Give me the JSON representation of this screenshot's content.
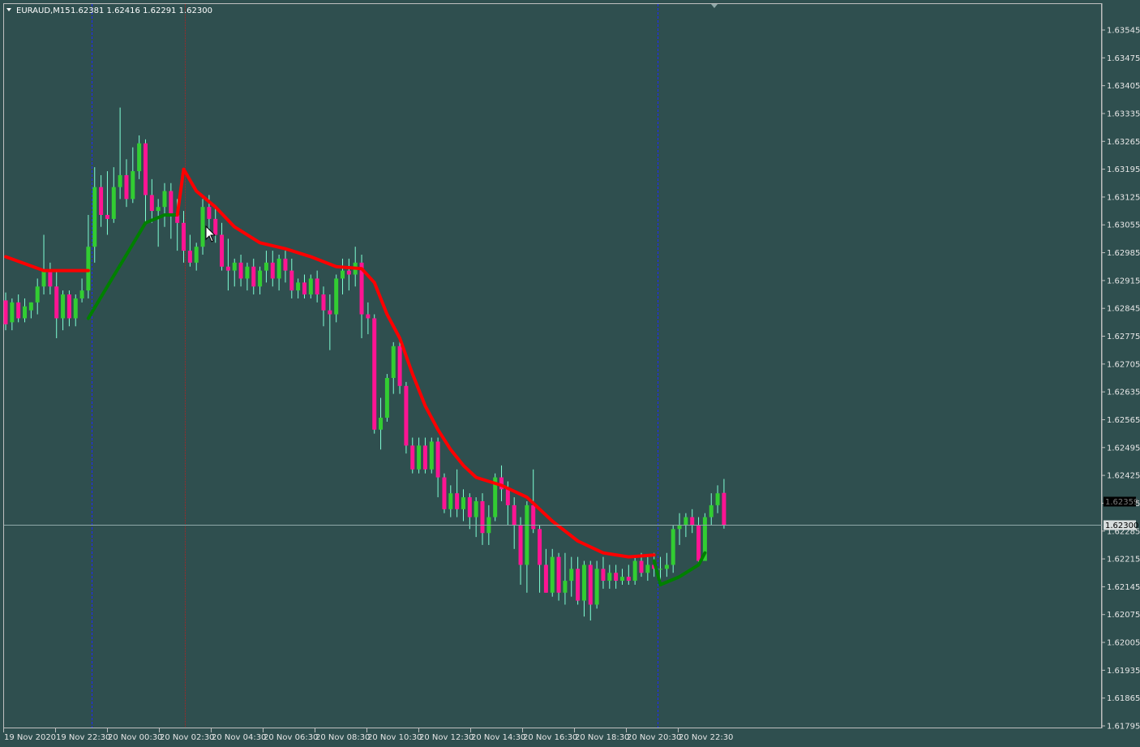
{
  "header": {
    "symbol": "EURAUD,M15",
    "ohlc": "1.62381 1.62416 1.62291 1.62300",
    "dropdown_icon": "triangle-down-icon"
  },
  "colors": {
    "background": "#2f4f4f",
    "grid_border": "#c0c0c0",
    "bull": "#32cd32",
    "bear": "#ff1493",
    "wick": "#7fffd4",
    "line_down": "#ff0000",
    "line_up": "#008000",
    "separator_blue": "#1e2aff",
    "separator_red": "#b22222",
    "bid_line": "#8fa8a8"
  },
  "chart_data": {
    "type": "candlestick",
    "price_axis": {
      "ticks": [
        "1.63545",
        "1.63475",
        "1.63405",
        "1.63335",
        "1.63265",
        "1.63195",
        "1.63125",
        "1.63055",
        "1.62985",
        "1.62915",
        "1.62845",
        "1.62775",
        "1.62705",
        "1.62635",
        "1.62565",
        "1.62495",
        "1.62425",
        "1.62355",
        "1.62285",
        "1.62215",
        "1.62145",
        "1.62075",
        "1.62005",
        "1.61935",
        "1.61865",
        "1.61795"
      ],
      "ylim": [
        1.61795,
        1.63545
      ],
      "current_price_label": "1.62300",
      "current_price": 1.623,
      "ask_price_label": "1.62359"
    },
    "time_axis": {
      "labels": [
        "19 Nov 2020",
        "19 Nov 22:30",
        "20 Nov 00:30",
        "20 Nov 02:30",
        "20 Nov 04:30",
        "20 Nov 06:30",
        "20 Nov 08:30",
        "20 Nov 10:30",
        "20 Nov 12:30",
        "20 Nov 14:30",
        "20 Nov 16:30",
        "20 Nov 18:30",
        "20 Nov 20:30",
        "20 Nov 22:30"
      ]
    },
    "candles": [
      {
        "o": 1.62865,
        "h": 1.62885,
        "c": 1.62805,
        "l": 1.6279
      },
      {
        "o": 1.6281,
        "h": 1.6287,
        "c": 1.6286,
        "l": 1.6279
      },
      {
        "o": 1.6286,
        "h": 1.6288,
        "c": 1.6282,
        "l": 1.6281
      },
      {
        "o": 1.6282,
        "h": 1.6287,
        "c": 1.6285,
        "l": 1.6281
      },
      {
        "o": 1.6284,
        "h": 1.6286,
        "c": 1.6286,
        "l": 1.6282
      },
      {
        "o": 1.6286,
        "h": 1.6292,
        "c": 1.629,
        "l": 1.6283
      },
      {
        "o": 1.629,
        "h": 1.6303,
        "c": 1.6294,
        "l": 1.6288
      },
      {
        "o": 1.6294,
        "h": 1.6296,
        "c": 1.629,
        "l": 1.6288
      },
      {
        "o": 1.629,
        "h": 1.6294,
        "c": 1.6282,
        "l": 1.6277
      },
      {
        "o": 1.6282,
        "h": 1.6289,
        "c": 1.6288,
        "l": 1.6279
      },
      {
        "o": 1.6288,
        "h": 1.6289,
        "c": 1.6282,
        "l": 1.628
      },
      {
        "o": 1.6282,
        "h": 1.6288,
        "c": 1.6287,
        "l": 1.628
      },
      {
        "o": 1.6287,
        "h": 1.6292,
        "c": 1.6289,
        "l": 1.6286
      },
      {
        "o": 1.6289,
        "h": 1.6308,
        "c": 1.63,
        "l": 1.6287
      },
      {
        "o": 1.63,
        "h": 1.632,
        "c": 1.6315,
        "l": 1.6296
      },
      {
        "o": 1.6315,
        "h": 1.6318,
        "c": 1.6308,
        "l": 1.6305
      },
      {
        "o": 1.6308,
        "h": 1.6319,
        "c": 1.6307,
        "l": 1.6303
      },
      {
        "o": 1.6307,
        "h": 1.632,
        "c": 1.6315,
        "l": 1.6306
      },
      {
        "o": 1.6315,
        "h": 1.6335,
        "c": 1.6318,
        "l": 1.6312
      },
      {
        "o": 1.6318,
        "h": 1.6322,
        "c": 1.6312,
        "l": 1.631
      },
      {
        "o": 1.6312,
        "h": 1.6325,
        "c": 1.6319,
        "l": 1.6311
      },
      {
        "o": 1.6319,
        "h": 1.6328,
        "c": 1.6326,
        "l": 1.6317
      },
      {
        "o": 1.6326,
        "h": 1.6327,
        "c": 1.6313,
        "l": 1.6306
      },
      {
        "o": 1.6313,
        "h": 1.6317,
        "c": 1.6309,
        "l": 1.6306
      },
      {
        "o": 1.6309,
        "h": 1.6312,
        "c": 1.631,
        "l": 1.63
      },
      {
        "o": 1.631,
        "h": 1.6316,
        "c": 1.6314,
        "l": 1.6305
      },
      {
        "o": 1.6314,
        "h": 1.6316,
        "c": 1.6308,
        "l": 1.6302
      },
      {
        "o": 1.6308,
        "h": 1.6312,
        "c": 1.6306,
        "l": 1.6299
      },
      {
        "o": 1.6306,
        "h": 1.6309,
        "c": 1.6299,
        "l": 1.6296
      },
      {
        "o": 1.6299,
        "h": 1.6303,
        "c": 1.6296,
        "l": 1.6295
      },
      {
        "o": 1.6296,
        "h": 1.6301,
        "c": 1.63,
        "l": 1.6294
      },
      {
        "o": 1.63,
        "h": 1.6312,
        "c": 1.631,
        "l": 1.6298
      },
      {
        "o": 1.631,
        "h": 1.6313,
        "c": 1.6307,
        "l": 1.6304
      },
      {
        "o": 1.6307,
        "h": 1.631,
        "c": 1.6303,
        "l": 1.6301
      },
      {
        "o": 1.6303,
        "h": 1.6306,
        "c": 1.6295,
        "l": 1.6294
      },
      {
        "o": 1.6295,
        "h": 1.6302,
        "c": 1.6294,
        "l": 1.6289
      },
      {
        "o": 1.6294,
        "h": 1.6297,
        "c": 1.6296,
        "l": 1.629
      },
      {
        "o": 1.6296,
        "h": 1.6298,
        "c": 1.6292,
        "l": 1.629
      },
      {
        "o": 1.6292,
        "h": 1.6296,
        "c": 1.6295,
        "l": 1.6289
      },
      {
        "o": 1.6295,
        "h": 1.6297,
        "c": 1.629,
        "l": 1.6288
      },
      {
        "o": 1.629,
        "h": 1.6295,
        "c": 1.6294,
        "l": 1.6288
      },
      {
        "o": 1.6294,
        "h": 1.6299,
        "c": 1.6296,
        "l": 1.6291
      },
      {
        "o": 1.6296,
        "h": 1.6299,
        "c": 1.6292,
        "l": 1.629
      },
      {
        "o": 1.6292,
        "h": 1.6298,
        "c": 1.6297,
        "l": 1.6289
      },
      {
        "o": 1.6297,
        "h": 1.6299,
        "c": 1.6294,
        "l": 1.6291
      },
      {
        "o": 1.6294,
        "h": 1.6297,
        "c": 1.6289,
        "l": 1.6287
      },
      {
        "o": 1.6289,
        "h": 1.6292,
        "c": 1.6291,
        "l": 1.6287
      },
      {
        "o": 1.6291,
        "h": 1.6293,
        "c": 1.6288,
        "l": 1.6287
      },
      {
        "o": 1.6288,
        "h": 1.6293,
        "c": 1.6292,
        "l": 1.6287
      },
      {
        "o": 1.6292,
        "h": 1.6294,
        "c": 1.6288,
        "l": 1.6286
      },
      {
        "o": 1.6288,
        "h": 1.629,
        "c": 1.6284,
        "l": 1.628
      },
      {
        "o": 1.6284,
        "h": 1.6288,
        "c": 1.6283,
        "l": 1.6274
      },
      {
        "o": 1.6283,
        "h": 1.6293,
        "c": 1.6292,
        "l": 1.6281
      },
      {
        "o": 1.6292,
        "h": 1.6297,
        "c": 1.6294,
        "l": 1.6288
      },
      {
        "o": 1.6294,
        "h": 1.6297,
        "c": 1.6293,
        "l": 1.6289
      },
      {
        "o": 1.6293,
        "h": 1.63,
        "c": 1.6296,
        "l": 1.629
      },
      {
        "o": 1.6296,
        "h": 1.6298,
        "c": 1.6283,
        "l": 1.6277
      },
      {
        "o": 1.6283,
        "h": 1.6286,
        "c": 1.6282,
        "l": 1.6278
      },
      {
        "o": 1.6282,
        "h": 1.6283,
        "c": 1.6254,
        "l": 1.6253
      },
      {
        "o": 1.6254,
        "h": 1.6262,
        "c": 1.6257,
        "l": 1.6249
      },
      {
        "o": 1.6257,
        "h": 1.6268,
        "c": 1.6267,
        "l": 1.6256
      },
      {
        "o": 1.6267,
        "h": 1.6276,
        "c": 1.6275,
        "l": 1.6263
      },
      {
        "o": 1.6275,
        "h": 1.6277,
        "c": 1.6265,
        "l": 1.6263
      },
      {
        "o": 1.6265,
        "h": 1.6266,
        "c": 1.625,
        "l": 1.6248
      },
      {
        "o": 1.625,
        "h": 1.6252,
        "c": 1.6244,
        "l": 1.6243
      },
      {
        "o": 1.6244,
        "h": 1.6252,
        "c": 1.625,
        "l": 1.6243
      },
      {
        "o": 1.625,
        "h": 1.6252,
        "c": 1.6244,
        "l": 1.6243
      },
      {
        "o": 1.6244,
        "h": 1.6252,
        "c": 1.6251,
        "l": 1.6243
      },
      {
        "o": 1.6251,
        "h": 1.6252,
        "c": 1.6242,
        "l": 1.6237
      },
      {
        "o": 1.6242,
        "h": 1.6243,
        "c": 1.6234,
        "l": 1.6233
      },
      {
        "o": 1.6234,
        "h": 1.624,
        "c": 1.6238,
        "l": 1.6232
      },
      {
        "o": 1.6238,
        "h": 1.6244,
        "c": 1.6234,
        "l": 1.6232
      },
      {
        "o": 1.6234,
        "h": 1.6239,
        "c": 1.6237,
        "l": 1.6231
      },
      {
        "o": 1.6237,
        "h": 1.6238,
        "c": 1.6232,
        "l": 1.6229
      },
      {
        "o": 1.6232,
        "h": 1.6237,
        "c": 1.6236,
        "l": 1.6227
      },
      {
        "o": 1.6236,
        "h": 1.6238,
        "c": 1.6228,
        "l": 1.6225
      },
      {
        "o": 1.6228,
        "h": 1.6235,
        "c": 1.6232,
        "l": 1.6225
      },
      {
        "o": 1.6232,
        "h": 1.6243,
        "c": 1.6242,
        "l": 1.6231
      },
      {
        "o": 1.6242,
        "h": 1.6245,
        "c": 1.6239,
        "l": 1.6236
      },
      {
        "o": 1.6239,
        "h": 1.6241,
        "c": 1.6235,
        "l": 1.623
      },
      {
        "o": 1.6235,
        "h": 1.6237,
        "c": 1.623,
        "l": 1.6224
      },
      {
        "o": 1.623,
        "h": 1.6232,
        "c": 1.622,
        "l": 1.6215
      },
      {
        "o": 1.622,
        "h": 1.6236,
        "c": 1.6235,
        "l": 1.6213
      },
      {
        "o": 1.6235,
        "h": 1.6244,
        "c": 1.6229,
        "l": 1.6228
      },
      {
        "o": 1.6229,
        "h": 1.623,
        "c": 1.622,
        "l": 1.6213
      },
      {
        "o": 1.622,
        "h": 1.6224,
        "c": 1.6213,
        "l": 1.6213
      },
      {
        "o": 1.6213,
        "h": 1.6224,
        "c": 1.6222,
        "l": 1.6212
      },
      {
        "o": 1.6222,
        "h": 1.6223,
        "c": 1.6213,
        "l": 1.6211
      },
      {
        "o": 1.6213,
        "h": 1.6223,
        "c": 1.6216,
        "l": 1.621
      },
      {
        "o": 1.6216,
        "h": 1.6222,
        "c": 1.6219,
        "l": 1.6212
      },
      {
        "o": 1.6219,
        "h": 1.6222,
        "c": 1.6211,
        "l": 1.621
      },
      {
        "o": 1.6211,
        "h": 1.6221,
        "c": 1.622,
        "l": 1.6207
      },
      {
        "o": 1.622,
        "h": 1.6221,
        "c": 1.621,
        "l": 1.6206
      },
      {
        "o": 1.621,
        "h": 1.6221,
        "c": 1.6219,
        "l": 1.6209
      },
      {
        "o": 1.6219,
        "h": 1.6222,
        "c": 1.6216,
        "l": 1.6214
      },
      {
        "o": 1.6216,
        "h": 1.622,
        "c": 1.6218,
        "l": 1.6214
      },
      {
        "o": 1.6218,
        "h": 1.622,
        "c": 1.6216,
        "l": 1.6214
      },
      {
        "o": 1.6216,
        "h": 1.6219,
        "c": 1.6217,
        "l": 1.6215
      },
      {
        "o": 1.6217,
        "h": 1.622,
        "c": 1.6216,
        "l": 1.6215
      },
      {
        "o": 1.6216,
        "h": 1.6222,
        "c": 1.6221,
        "l": 1.6215
      },
      {
        "o": 1.6221,
        "h": 1.6223,
        "c": 1.6218,
        "l": 1.6217
      },
      {
        "o": 1.6218,
        "h": 1.6222,
        "c": 1.622,
        "l": 1.6216
      },
      {
        "o": 1.622,
        "h": 1.6223,
        "c": 1.6219,
        "l": 1.6217
      },
      {
        "o": 1.6219,
        "h": 1.6222,
        "c": 1.6219,
        "l": 1.6216
      },
      {
        "o": 1.6219,
        "h": 1.6223,
        "c": 1.622,
        "l": 1.6217
      },
      {
        "o": 1.622,
        "h": 1.623,
        "c": 1.6229,
        "l": 1.6218
      },
      {
        "o": 1.6229,
        "h": 1.6233,
        "c": 1.623,
        "l": 1.6225
      },
      {
        "o": 1.623,
        "h": 1.6233,
        "c": 1.6232,
        "l": 1.6227
      },
      {
        "o": 1.6232,
        "h": 1.6234,
        "c": 1.623,
        "l": 1.6228
      },
      {
        "o": 1.623,
        "h": 1.6232,
        "c": 1.6221,
        "l": 1.622
      },
      {
        "o": 1.6221,
        "h": 1.6233,
        "c": 1.6232,
        "l": 1.6221
      },
      {
        "o": 1.6232,
        "h": 1.6238,
        "c": 1.6235,
        "l": 1.623
      },
      {
        "o": 1.6235,
        "h": 1.624,
        "c": 1.6238,
        "l": 1.6233
      },
      {
        "o": 1.62381,
        "h": 1.62416,
        "c": 1.623,
        "l": 1.62291
      }
    ],
    "series": [
      {
        "name": "",
        "kind": "line_red",
        "points": [
          [
            0,
            1.62975
          ],
          [
            6,
            1.6294
          ],
          [
            12,
            1.6294
          ],
          [
            13,
            1.6294
          ]
        ]
      },
      {
        "name": "",
        "kind": "line_green",
        "points": [
          [
            13,
            1.6282
          ],
          [
            16,
            1.629
          ],
          [
            19,
            1.6298
          ],
          [
            22,
            1.6306
          ],
          [
            25,
            1.6308
          ],
          [
            27,
            1.6308
          ]
        ]
      },
      {
        "name": "",
        "kind": "line_red",
        "points": [
          [
            27,
            1.6308
          ],
          [
            28,
            1.63195
          ],
          [
            30,
            1.6314
          ],
          [
            33,
            1.631
          ],
          [
            36,
            1.6305
          ],
          [
            40,
            1.6301
          ],
          [
            44,
            1.62995
          ],
          [
            48,
            1.62975
          ],
          [
            52,
            1.6295
          ],
          [
            56,
            1.62945
          ],
          [
            58,
            1.6291
          ],
          [
            60,
            1.6283
          ],
          [
            62,
            1.6277
          ],
          [
            64,
            1.6268
          ],
          [
            66,
            1.626
          ],
          [
            68,
            1.6254
          ],
          [
            70,
            1.6249
          ],
          [
            72,
            1.6245
          ],
          [
            74,
            1.6242
          ],
          [
            78,
            1.624
          ],
          [
            82,
            1.6237
          ],
          [
            86,
            1.6231
          ],
          [
            90,
            1.6226
          ],
          [
            94,
            1.6223
          ],
          [
            98,
            1.6222
          ],
          [
            102,
            1.62225
          ]
        ]
      },
      {
        "name": "",
        "kind": "line_green",
        "points": [
          [
            102,
            1.6221
          ],
          [
            103,
            1.6215
          ],
          [
            106,
            1.6217
          ],
          [
            109,
            1.622
          ],
          [
            110,
            1.6223
          ]
        ]
      }
    ],
    "separators": [
      {
        "kind": "blue",
        "at_candle": 13.5
      },
      {
        "kind": "red",
        "at_candle": 28.2
      },
      {
        "kind": "blue",
        "at_candle": 102.6
      }
    ]
  }
}
